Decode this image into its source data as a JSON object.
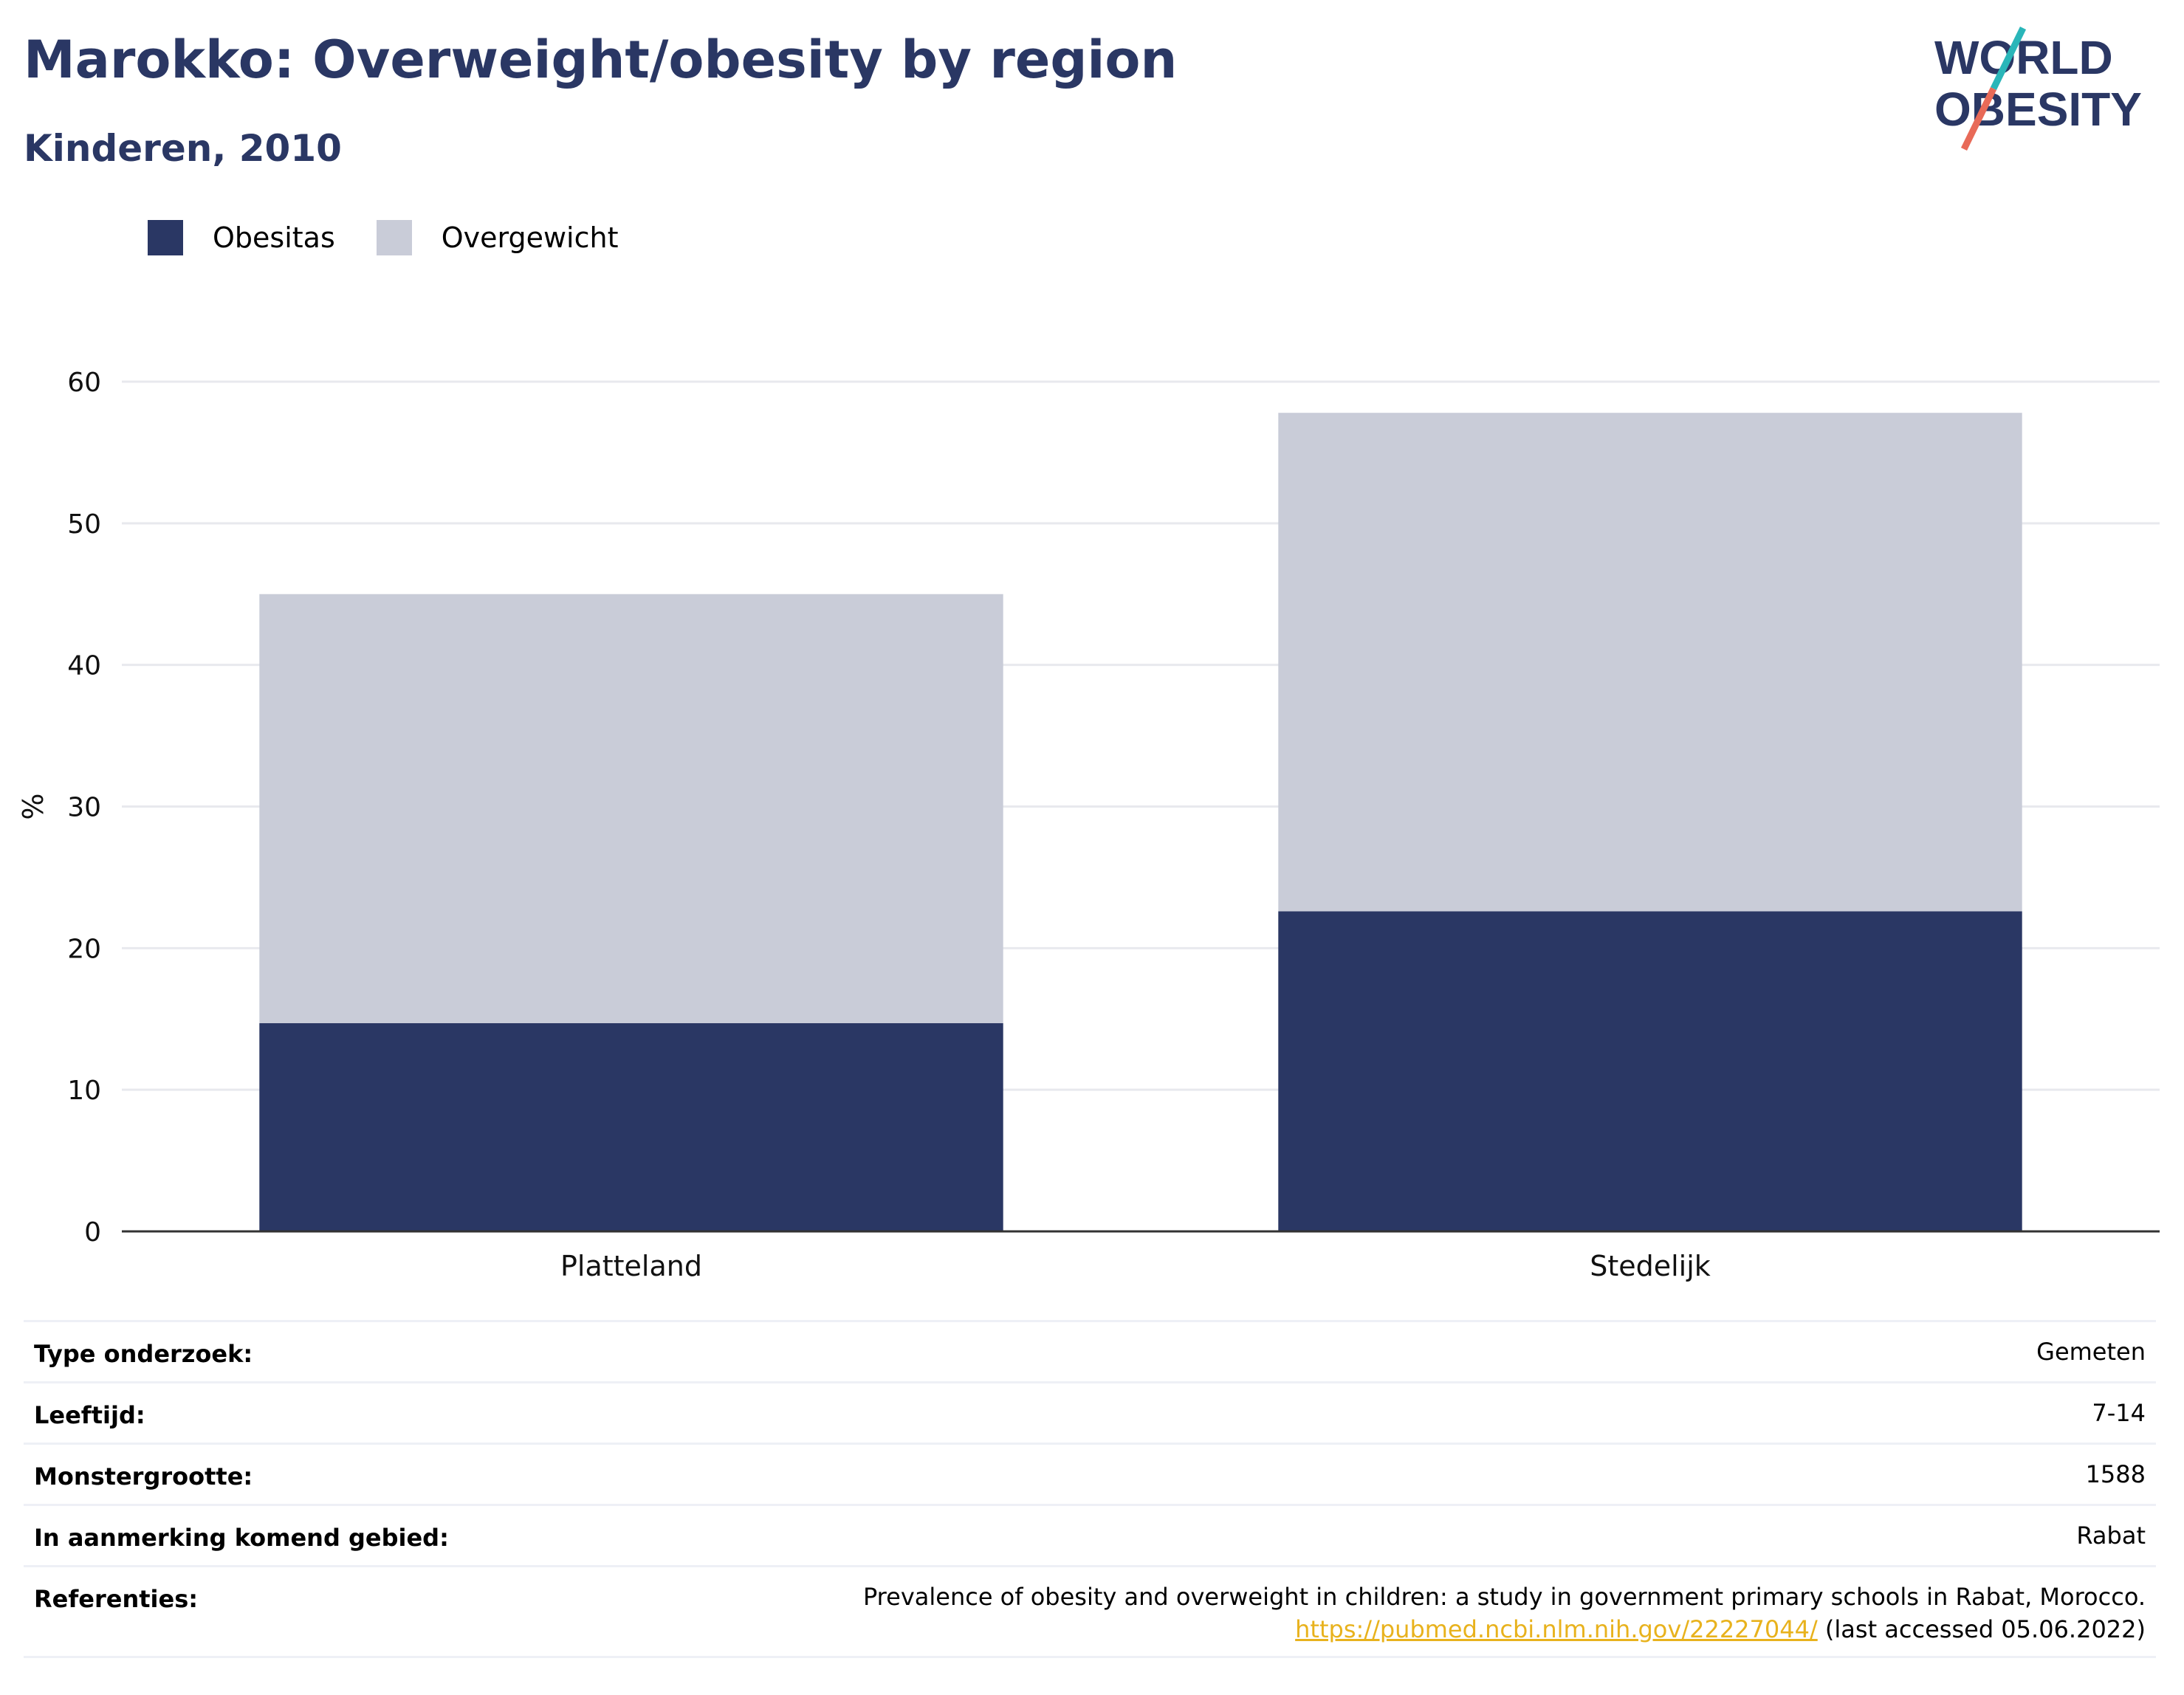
{
  "header": {
    "title": "Marokko: Overweight/obesity by region",
    "subtitle": "Kinderen, 2010"
  },
  "logo": {
    "line1": "WORLD",
    "line2": "OBESITY",
    "accent_colors": [
      "#2ab6b9",
      "#e86a58"
    ]
  },
  "colors": {
    "obesitas": "#2a3764",
    "overgewicht": "#c9ccd8",
    "text": "#2a3764"
  },
  "legend": [
    {
      "label": "Obesitas",
      "color": "#2a3764"
    },
    {
      "label": "Overgewicht",
      "color": "#c9ccd8"
    }
  ],
  "chart_data": {
    "type": "bar",
    "stacked": true,
    "categories": [
      "Platteland",
      "Stedelijk"
    ],
    "series": [
      {
        "name": "Obesitas",
        "values": [
          14.7,
          22.6
        ],
        "color": "#2a3764"
      },
      {
        "name": "Overgewicht",
        "values": [
          30.3,
          35.2
        ],
        "color": "#c9ccd8"
      }
    ],
    "ylabel": "%",
    "ylim": [
      0,
      60
    ],
    "yticks": [
      0,
      10,
      20,
      30,
      40,
      50,
      60
    ],
    "grid": true,
    "legend_position": "top-left"
  },
  "info": [
    {
      "label": "Type onderzoek:",
      "value": "Gemeten"
    },
    {
      "label": "Leeftijd:",
      "value": "7-14"
    },
    {
      "label": "Monstergrootte:",
      "value": "1588"
    },
    {
      "label": "In aanmerking komend gebied:",
      "value": "Rabat"
    }
  ],
  "references": {
    "label": "Referenties:",
    "text": "Prevalence of obesity and overweight in children: a study in government primary schools in Rabat, Morocco.",
    "link": "https://pubmed.ncbi.nlm.nih.gov/22227044/",
    "accessed": "(last accessed 05.06.2022)"
  }
}
